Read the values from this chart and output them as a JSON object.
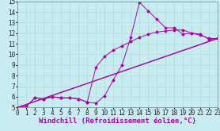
{
  "xlabel": "Windchill (Refroidissement éolien,°C)",
  "xlim": [
    0,
    23
  ],
  "ylim": [
    5,
    15
  ],
  "xticks": [
    0,
    1,
    2,
    3,
    4,
    5,
    6,
    7,
    8,
    9,
    10,
    11,
    12,
    13,
    14,
    15,
    16,
    17,
    18,
    19,
    20,
    21,
    22,
    23
  ],
  "yticks": [
    5,
    6,
    7,
    8,
    9,
    10,
    11,
    12,
    13,
    14,
    15
  ],
  "bg_color": "#c8edf0",
  "line_color": "#aa00aa",
  "grid_color": "#b0dde0",
  "tick_fontsize": 5.5,
  "xlabel_fontsize": 6.5,
  "line1_x": [
    0,
    1,
    2,
    3,
    4,
    5,
    6,
    7,
    8,
    9,
    10,
    11,
    12,
    13,
    14,
    15,
    16,
    17,
    18,
    19,
    20,
    21,
    22,
    23
  ],
  "line1_y": [
    5.0,
    5.1,
    5.9,
    5.8,
    6.0,
    5.9,
    5.9,
    5.8,
    5.5,
    5.4,
    6.1,
    7.6,
    9.0,
    11.6,
    14.9,
    14.1,
    13.3,
    12.5,
    12.5,
    11.9,
    12.0,
    11.9,
    11.4,
    11.5
  ],
  "line2_x": [
    0,
    1,
    2,
    3,
    4,
    5,
    6,
    7,
    8,
    9,
    10,
    11,
    12,
    13,
    14,
    15,
    16,
    17,
    18,
    19,
    20,
    21,
    22,
    23
  ],
  "line2_y": [
    5.0,
    5.1,
    5.9,
    5.8,
    6.0,
    5.9,
    5.9,
    5.8,
    5.5,
    8.8,
    9.8,
    10.4,
    10.8,
    11.2,
    11.6,
    11.9,
    12.1,
    12.2,
    12.3,
    12.3,
    12.0,
    11.8,
    11.5,
    11.5
  ],
  "line3_x": [
    0,
    23
  ],
  "line3_y": [
    5.0,
    11.5
  ],
  "line4_x": [
    0,
    23
  ],
  "line4_y": [
    5.0,
    11.5
  ]
}
